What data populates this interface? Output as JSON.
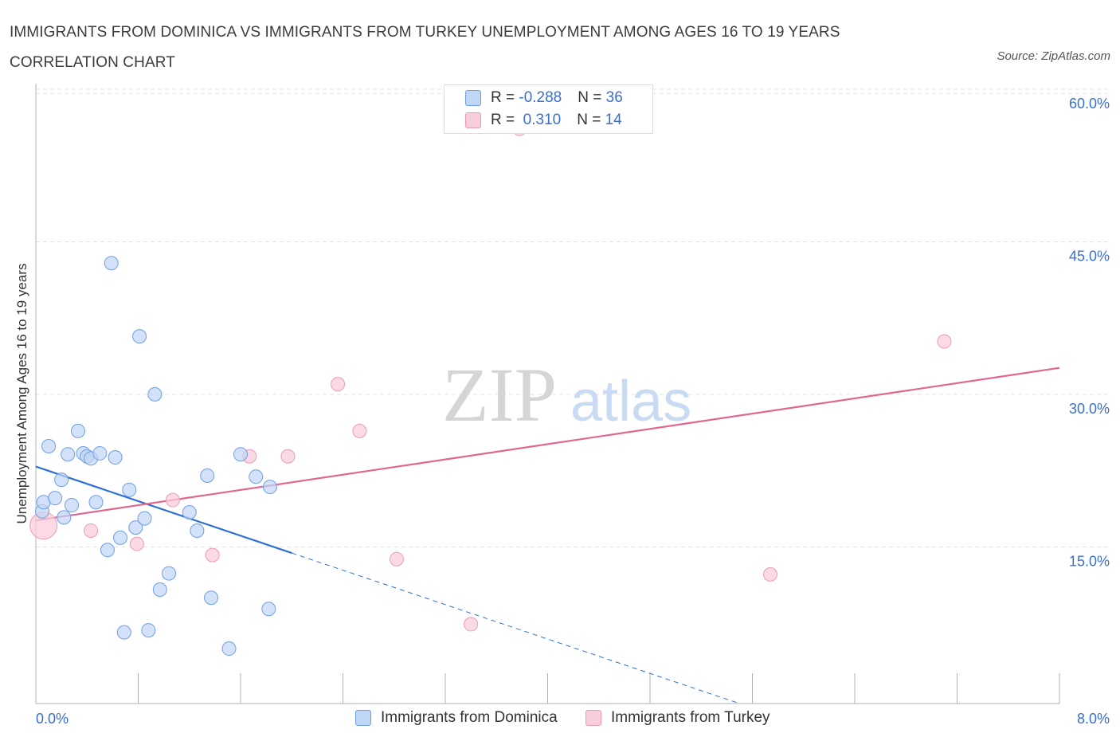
{
  "title": "IMMIGRANTS FROM DOMINICA VS IMMIGRANTS FROM TURKEY UNEMPLOYMENT AMONG AGES 16 TO 19 YEARS CORRELATION CHART",
  "source": "Source: ZipAtlas.com",
  "watermark": {
    "zip": "ZIP",
    "atlas": "atlas"
  },
  "legend": {
    "dominica": {
      "r_label": "R = ",
      "r_value": "-0.288",
      "n_label": "N = ",
      "n_value": "36"
    },
    "turkey": {
      "r_label": "R = ",
      "r_value": " 0.310",
      "n_label": "N = ",
      "n_value": "14"
    }
  },
  "chart_data": {
    "type": "scatter",
    "title": "IMMIGRANTS FROM DOMINICA VS IMMIGRANTS FROM TURKEY UNEMPLOYMENT AMONG AGES 16 TO 19 YEARS CORRELATION CHART",
    "xlabel": "",
    "ylabel": "Unemployment Among Ages 16 to 19 years",
    "xlim": [
      0,
      8
    ],
    "ylim": [
      0,
      60
    ],
    "x_tick_labels": [
      "0.0%",
      "8.0%"
    ],
    "y_ticks": [
      15,
      30,
      45,
      60
    ],
    "y_tick_labels": [
      "15.0%",
      "30.0%",
      "45.0%",
      "60.0%"
    ],
    "grid": true,
    "legend_position": "top-center",
    "colors": {
      "dominica": "#6f9ee8",
      "dominica_fill": "#c0d6f5",
      "dominica_line": "#2e6fd4",
      "turkey": "#ee9ab5",
      "turkey_fill": "#f9cedc",
      "turkey_line": "#e0678f"
    },
    "series": [
      {
        "name": "Immigrants from Dominica",
        "r": -0.288,
        "n": 36,
        "points": [
          [
            0.05,
            18.9
          ],
          [
            0.06,
            19.8
          ],
          [
            0.1,
            25.3
          ],
          [
            0.15,
            20.2
          ],
          [
            0.2,
            22.0
          ],
          [
            0.22,
            18.3
          ],
          [
            0.25,
            24.5
          ],
          [
            0.28,
            19.5
          ],
          [
            0.33,
            26.8
          ],
          [
            0.37,
            24.6
          ],
          [
            0.4,
            24.3
          ],
          [
            0.43,
            24.1
          ],
          [
            0.47,
            19.8
          ],
          [
            0.5,
            24.6
          ],
          [
            0.56,
            15.1
          ],
          [
            0.59,
            43.3
          ],
          [
            0.62,
            24.2
          ],
          [
            0.66,
            16.3
          ],
          [
            0.69,
            7.0
          ],
          [
            0.73,
            21.0
          ],
          [
            0.78,
            17.3
          ],
          [
            0.81,
            36.1
          ],
          [
            0.85,
            18.2
          ],
          [
            0.88,
            7.2
          ],
          [
            0.93,
            30.4
          ],
          [
            0.97,
            11.2
          ],
          [
            1.04,
            12.8
          ],
          [
            1.2,
            18.8
          ],
          [
            1.26,
            17.0
          ],
          [
            1.34,
            22.4
          ],
          [
            1.37,
            10.4
          ],
          [
            1.51,
            5.4
          ],
          [
            1.6,
            24.5
          ],
          [
            1.72,
            22.3
          ],
          [
            1.82,
            9.3
          ],
          [
            1.83,
            21.3
          ]
        ],
        "trend": {
          "x": [
            0.0,
            2.0
          ],
          "y": [
            23.3,
            14.8
          ],
          "dashed_to": [
            5.5,
            0.0
          ]
        }
      },
      {
        "name": "Immigrants from Turkey",
        "r": 0.31,
        "n": 14,
        "points": [
          [
            0.06,
            17.5
          ],
          [
            0.43,
            17.0
          ],
          [
            0.79,
            15.7
          ],
          [
            1.07,
            20.0
          ],
          [
            1.38,
            14.6
          ],
          [
            1.67,
            24.3
          ],
          [
            1.97,
            24.3
          ],
          [
            2.36,
            31.4
          ],
          [
            2.53,
            26.8
          ],
          [
            2.82,
            14.2
          ],
          [
            3.4,
            7.8
          ],
          [
            3.78,
            56.5
          ],
          [
            5.74,
            12.7
          ],
          [
            7.1,
            35.6
          ]
        ],
        "trend": {
          "x": [
            0.0,
            8.0
          ],
          "y": [
            18.0,
            33.0
          ]
        }
      }
    ]
  },
  "bottom_legend": {
    "dominica": "Immigrants from Dominica",
    "turkey": "Immigrants from Turkey"
  }
}
